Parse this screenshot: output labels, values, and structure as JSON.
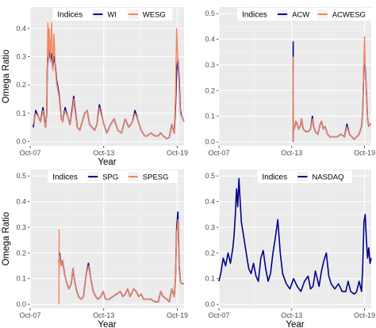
{
  "figure": {
    "colors": {
      "panel_bg": "#ebebeb",
      "grid_major": "#ffffff",
      "grid_minor": "#f5f5f5",
      "axis_text": "#4d4d4d",
      "label_text": "#000000"
    }
  },
  "chart_data": [
    {
      "type": "line",
      "xlabel": "Year",
      "ylabel": "Omega Ratio",
      "xlim": [
        2007.75,
        2020.3
      ],
      "ylim": [
        -0.015,
        0.475
      ],
      "x_ticks": [
        {
          "v": 2007.75,
          "label": "Oct-07"
        },
        {
          "v": 2013.75,
          "label": "Oct-13"
        },
        {
          "v": 2019.75,
          "label": "Oct-19"
        }
      ],
      "y_ticks": [
        0.0,
        0.1,
        0.2,
        0.3,
        0.4
      ],
      "legend": {
        "title": "Indices",
        "position": "top"
      },
      "series": [
        {
          "name": "WI",
          "color": "#00008b",
          "width": 1.6,
          "x": [
            2008.0,
            2008.2,
            2008.4,
            2008.6,
            2008.8,
            2009.0,
            2009.1,
            2009.15,
            2009.25,
            2009.4,
            2009.5,
            2009.6,
            2009.7,
            2009.8,
            2009.9,
            2010.1,
            2010.3,
            2010.4,
            2010.6,
            2010.8,
            2011.0,
            2011.2,
            2011.3,
            2011.4,
            2011.6,
            2011.8,
            2012.0,
            2012.2,
            2012.4,
            2012.6,
            2012.8,
            2013.0,
            2013.2,
            2013.4,
            2013.7,
            2014.0,
            2014.3,
            2014.6,
            2014.9,
            2015.2,
            2015.5,
            2015.8,
            2016.1,
            2016.3,
            2016.5,
            2016.8,
            2017.1,
            2017.3,
            2017.6,
            2017.9,
            2018.2,
            2018.4,
            2018.6,
            2018.9,
            2019.1,
            2019.3,
            2019.5,
            2019.6,
            2019.7,
            2019.8,
            2019.9,
            2020.0,
            2020.1,
            2020.2,
            2020.3
          ],
          "y": [
            0.05,
            0.11,
            0.09,
            0.07,
            0.12,
            0.05,
            0.1,
            0.26,
            0.33,
            0.29,
            0.31,
            0.26,
            0.3,
            0.27,
            0.22,
            0.17,
            0.08,
            0.07,
            0.12,
            0.09,
            0.06,
            0.12,
            0.16,
            0.12,
            0.05,
            0.04,
            0.07,
            0.1,
            0.11,
            0.06,
            0.05,
            0.04,
            0.06,
            0.13,
            0.07,
            0.03,
            0.06,
            0.08,
            0.04,
            0.03,
            0.08,
            0.05,
            0.07,
            0.11,
            0.08,
            0.04,
            0.02,
            0.02,
            0.03,
            0.02,
            0.02,
            0.03,
            0.02,
            0.01,
            0.015,
            0.06,
            0.03,
            0.12,
            0.25,
            0.29,
            0.22,
            0.11,
            0.09,
            0.08,
            0.07
          ]
        },
        {
          "name": "WESG",
          "color": "#f4845f",
          "width": 1.4,
          "x": [
            2008.0,
            2008.2,
            2008.4,
            2008.6,
            2008.8,
            2009.0,
            2009.1,
            2009.15,
            2009.2,
            2009.25,
            2009.3,
            2009.4,
            2009.5,
            2009.6,
            2009.7,
            2009.8,
            2009.9,
            2010.1,
            2010.3,
            2010.4,
            2010.6,
            2010.8,
            2011.0,
            2011.2,
            2011.3,
            2011.4,
            2011.6,
            2011.8,
            2012.0,
            2012.2,
            2012.4,
            2012.6,
            2012.8,
            2013.0,
            2013.2,
            2013.4,
            2013.7,
            2014.0,
            2014.3,
            2014.6,
            2014.9,
            2015.2,
            2015.5,
            2015.8,
            2016.1,
            2016.3,
            2016.5,
            2016.8,
            2017.1,
            2017.3,
            2017.6,
            2017.9,
            2018.2,
            2018.4,
            2018.6,
            2018.9,
            2019.1,
            2019.3,
            2019.5,
            2019.6,
            2019.7,
            2019.8,
            2019.9,
            2020.0,
            2020.1,
            2020.2,
            2020.3
          ],
          "y": [
            0.06,
            0.1,
            0.09,
            0.07,
            0.11,
            0.05,
            0.1,
            0.26,
            0.42,
            0.3,
            0.4,
            0.28,
            0.42,
            0.25,
            0.38,
            0.26,
            0.21,
            0.16,
            0.08,
            0.07,
            0.11,
            0.09,
            0.06,
            0.11,
            0.15,
            0.11,
            0.05,
            0.04,
            0.07,
            0.1,
            0.11,
            0.06,
            0.05,
            0.04,
            0.06,
            0.12,
            0.07,
            0.03,
            0.06,
            0.08,
            0.04,
            0.03,
            0.08,
            0.05,
            0.07,
            0.1,
            0.08,
            0.04,
            0.02,
            0.02,
            0.03,
            0.02,
            0.02,
            0.03,
            0.02,
            0.01,
            0.015,
            0.06,
            0.03,
            0.15,
            0.4,
            0.28,
            0.2,
            0.1,
            0.09,
            0.08,
            0.07
          ]
        }
      ]
    },
    {
      "type": "line",
      "xlabel": "",
      "ylabel": "",
      "xlim": [
        2007.75,
        2020.3
      ],
      "ylim": [
        -0.015,
        0.525
      ],
      "x_ticks": [
        {
          "v": 2007.75,
          "label": "Oct-07"
        },
        {
          "v": 2013.75,
          "label": "Oct-13"
        },
        {
          "v": 2019.75,
          "label": "Oct-19"
        }
      ],
      "y_ticks": [
        0.0,
        0.1,
        0.2,
        0.3,
        0.4,
        0.5
      ],
      "legend": {
        "title": "Indices",
        "position": "top"
      },
      "series": [
        {
          "name": "ACW",
          "color": "#00008b",
          "width": 1.6,
          "x": [
            2013.86,
            2013.87,
            2013.88,
            2013.9,
            2013.95,
            2014.1,
            2014.2,
            2014.3,
            2014.45,
            2014.55,
            2014.7,
            2014.9,
            2015.1,
            2015.3,
            2015.45,
            2015.55,
            2015.7,
            2015.9,
            2016.1,
            2016.2,
            2016.35,
            2016.5,
            2016.7,
            2016.9,
            2017.2,
            2017.5,
            2017.8,
            2018.1,
            2018.3,
            2018.5,
            2018.7,
            2018.9,
            2019.1,
            2019.3,
            2019.5,
            2019.6,
            2019.7,
            2019.8,
            2019.9,
            2020.0,
            2020.1,
            2020.2,
            2020.3
          ],
          "y": [
            0.0,
            0.39,
            0.03,
            0.06,
            0.05,
            0.08,
            0.07,
            0.05,
            0.06,
            0.09,
            0.05,
            0.04,
            0.04,
            0.05,
            0.1,
            0.06,
            0.04,
            0.03,
            0.07,
            0.08,
            0.05,
            0.06,
            0.03,
            0.02,
            0.02,
            0.02,
            0.03,
            0.02,
            0.07,
            0.03,
            0.02,
            0.01,
            0.02,
            0.03,
            0.06,
            0.12,
            0.3,
            0.29,
            0.2,
            0.09,
            0.06,
            0.07,
            0.07
          ]
        },
        {
          "name": "ACWESG",
          "color": "#f4845f",
          "width": 1.4,
          "x": [
            2013.86,
            2013.875,
            2013.89,
            2013.9,
            2013.95,
            2014.1,
            2014.2,
            2014.3,
            2014.45,
            2014.55,
            2014.7,
            2014.9,
            2015.1,
            2015.3,
            2015.45,
            2015.55,
            2015.7,
            2015.9,
            2016.1,
            2016.2,
            2016.35,
            2016.5,
            2016.7,
            2016.9,
            2017.2,
            2017.5,
            2017.8,
            2018.1,
            2018.3,
            2018.5,
            2018.7,
            2018.9,
            2019.1,
            2019.3,
            2019.5,
            2019.6,
            2019.7,
            2019.75,
            2019.8,
            2019.9,
            2020.0,
            2020.1,
            2020.2,
            2020.3
          ],
          "y": [
            0.0,
            0.33,
            0.03,
            0.06,
            0.05,
            0.08,
            0.07,
            0.05,
            0.06,
            0.09,
            0.05,
            0.04,
            0.04,
            0.05,
            0.09,
            0.06,
            0.04,
            0.03,
            0.07,
            0.08,
            0.05,
            0.06,
            0.03,
            0.02,
            0.02,
            0.02,
            0.03,
            0.02,
            0.06,
            0.03,
            0.02,
            0.01,
            0.02,
            0.03,
            0.06,
            0.12,
            0.32,
            0.41,
            0.28,
            0.2,
            0.09,
            0.06,
            0.07,
            0.07
          ]
        }
      ]
    },
    {
      "type": "line",
      "xlabel": "Year",
      "ylabel": "Omega Ratio",
      "xlim": [
        2007.75,
        2020.3
      ],
      "ylim": [
        -0.015,
        0.525
      ],
      "x_ticks": [
        {
          "v": 2007.75,
          "label": "Oct-07"
        },
        {
          "v": 2013.75,
          "label": "Oct-13"
        },
        {
          "v": 2019.75,
          "label": "Oct-19"
        }
      ],
      "y_ticks": [
        0.0,
        0.1,
        0.2,
        0.3,
        0.4,
        0.5
      ],
      "legend": {
        "title": "Indices",
        "position": "top"
      },
      "series": [
        {
          "name": "SPG",
          "color": "#00008b",
          "width": 1.6,
          "x": [
            2010.1,
            2010.15,
            2010.3,
            2010.4,
            2010.55,
            2010.7,
            2010.9,
            2011.1,
            2011.25,
            2011.35,
            2011.5,
            2011.7,
            2011.9,
            2012.1,
            2012.3,
            2012.5,
            2012.7,
            2012.9,
            2013.1,
            2013.3,
            2013.5,
            2013.7,
            2013.9,
            2014.2,
            2014.5,
            2014.8,
            2015.1,
            2015.3,
            2015.5,
            2015.7,
            2015.9,
            2016.2,
            2016.4,
            2016.6,
            2016.8,
            2017.0,
            2017.3,
            2017.6,
            2017.9,
            2018.2,
            2018.4,
            2018.6,
            2018.9,
            2019.1,
            2019.3,
            2019.5,
            2019.6,
            2019.7,
            2019.8,
            2019.9,
            2020.0,
            2020.1,
            2020.3
          ],
          "y": [
            0.16,
            0.2,
            0.15,
            0.17,
            0.12,
            0.09,
            0.06,
            0.08,
            0.14,
            0.1,
            0.06,
            0.03,
            0.02,
            0.03,
            0.11,
            0.16,
            0.1,
            0.05,
            0.03,
            0.02,
            0.03,
            0.05,
            0.02,
            0.02,
            0.03,
            0.04,
            0.05,
            0.03,
            0.04,
            0.06,
            0.03,
            0.06,
            0.05,
            0.03,
            0.04,
            0.02,
            0.02,
            0.02,
            0.01,
            0.01,
            0.05,
            0.03,
            0.02,
            0.01,
            0.06,
            0.03,
            0.1,
            0.3,
            0.36,
            0.15,
            0.09,
            0.08,
            0.08
          ]
        },
        {
          "name": "SPESG",
          "color": "#f4845f",
          "width": 1.4,
          "x": [
            2010.1,
            2010.11,
            2010.12,
            2010.15,
            2010.3,
            2010.4,
            2010.55,
            2010.7,
            2010.9,
            2011.1,
            2011.25,
            2011.35,
            2011.5,
            2011.7,
            2011.9,
            2012.1,
            2012.3,
            2012.5,
            2012.7,
            2012.9,
            2013.1,
            2013.3,
            2013.5,
            2013.7,
            2013.9,
            2014.2,
            2014.5,
            2014.8,
            2015.1,
            2015.3,
            2015.5,
            2015.7,
            2015.9,
            2016.2,
            2016.4,
            2016.6,
            2016.8,
            2017.0,
            2017.3,
            2017.6,
            2017.9,
            2018.2,
            2018.4,
            2018.6,
            2018.9,
            2019.1,
            2019.3,
            2019.5,
            2019.6,
            2019.7,
            2019.8,
            2019.9,
            2020.0,
            2020.1,
            2020.3
          ],
          "y": [
            0.0,
            0.29,
            0.12,
            0.19,
            0.15,
            0.17,
            0.12,
            0.09,
            0.06,
            0.08,
            0.14,
            0.1,
            0.06,
            0.03,
            0.02,
            0.03,
            0.11,
            0.15,
            0.1,
            0.05,
            0.03,
            0.02,
            0.03,
            0.05,
            0.02,
            0.02,
            0.03,
            0.04,
            0.05,
            0.03,
            0.04,
            0.06,
            0.03,
            0.06,
            0.05,
            0.03,
            0.04,
            0.02,
            0.02,
            0.02,
            0.01,
            0.01,
            0.05,
            0.03,
            0.02,
            0.01,
            0.06,
            0.03,
            0.1,
            0.28,
            0.33,
            0.14,
            0.09,
            0.08,
            0.08
          ]
        }
      ]
    },
    {
      "type": "line",
      "xlabel": "Year",
      "ylabel": "",
      "xlim": [
        2007.75,
        2020.3
      ],
      "ylim": [
        -0.015,
        0.525
      ],
      "x_ticks": [
        {
          "v": 2007.75,
          "label": "Oct-07"
        },
        {
          "v": 2013.75,
          "label": "Oct-13"
        },
        {
          "v": 2019.75,
          "label": "Oct-19"
        }
      ],
      "y_ticks": [
        0.0,
        0.1,
        0.2,
        0.3,
        0.4,
        0.5
      ],
      "legend": {
        "title": "Indices",
        "position": "top"
      },
      "series": [
        {
          "name": "NASDAQ",
          "color": "#00008b",
          "width": 1.6,
          "x": [
            2007.75,
            2007.9,
            2008.1,
            2008.3,
            2008.5,
            2008.7,
            2008.9,
            2009.0,
            2009.1,
            2009.2,
            2009.3,
            2009.4,
            2009.5,
            2009.6,
            2009.8,
            2010.0,
            2010.2,
            2010.4,
            2010.6,
            2010.8,
            2011.0,
            2011.2,
            2011.4,
            2011.6,
            2011.8,
            2012.0,
            2012.2,
            2012.4,
            2012.6,
            2012.8,
            2013.0,
            2013.3,
            2013.6,
            2013.9,
            2014.2,
            2014.5,
            2014.8,
            2015.1,
            2015.3,
            2015.5,
            2015.7,
            2016.0,
            2016.2,
            2016.4,
            2016.6,
            2016.8,
            2017.0,
            2017.3,
            2017.6,
            2017.9,
            2018.2,
            2018.4,
            2018.6,
            2018.9,
            2019.1,
            2019.3,
            2019.5,
            2019.6,
            2019.7,
            2019.8,
            2019.9,
            2020.0,
            2020.1,
            2020.2,
            2020.3
          ],
          "y": [
            0.09,
            0.12,
            0.18,
            0.15,
            0.2,
            0.16,
            0.22,
            0.27,
            0.35,
            0.45,
            0.38,
            0.49,
            0.4,
            0.32,
            0.26,
            0.2,
            0.14,
            0.12,
            0.16,
            0.11,
            0.09,
            0.18,
            0.21,
            0.14,
            0.09,
            0.12,
            0.2,
            0.26,
            0.33,
            0.2,
            0.12,
            0.08,
            0.06,
            0.1,
            0.07,
            0.05,
            0.09,
            0.11,
            0.06,
            0.07,
            0.13,
            0.07,
            0.13,
            0.17,
            0.2,
            0.11,
            0.08,
            0.06,
            0.08,
            0.05,
            0.05,
            0.09,
            0.05,
            0.04,
            0.05,
            0.09,
            0.05,
            0.15,
            0.32,
            0.35,
            0.25,
            0.18,
            0.22,
            0.16,
            0.18
          ]
        }
      ]
    }
  ]
}
